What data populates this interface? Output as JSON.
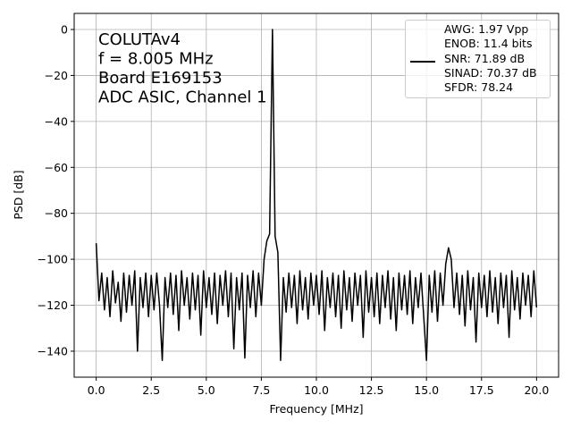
{
  "chart_data": {
    "type": "line",
    "xlabel": "Frequency [MHz]",
    "ylabel": "PSD [dB]",
    "annotations": [
      "COLUTAv4",
      "f = 8.005 MHz",
      "Board E169153",
      "ADC ASIC, Channel 1"
    ],
    "xlim": [
      -1.0,
      21.0
    ],
    "ylim": [
      -151.3,
      7
    ],
    "xticks": [
      {
        "value": 0,
        "label": "0.0"
      },
      {
        "value": 2.5,
        "label": "2.5"
      },
      {
        "value": 5,
        "label": "5.0"
      },
      {
        "value": 7.5,
        "label": "7.5"
      },
      {
        "value": 10,
        "label": "10.0"
      },
      {
        "value": 12.5,
        "label": "12.5"
      },
      {
        "value": 15,
        "label": "15.0"
      },
      {
        "value": 17.5,
        "label": "17.5"
      },
      {
        "value": 20,
        "label": "20.0"
      }
    ],
    "yticks": [
      0,
      {
        "value": -20,
        "label": "−20"
      },
      {
        "value": -40,
        "label": "−40"
      },
      {
        "value": -60,
        "label": "−60"
      },
      {
        "value": -80,
        "label": "−80"
      },
      {
        "value": -100,
        "label": "−100"
      },
      {
        "value": -120,
        "label": "−120"
      },
      {
        "value": -140,
        "label": "−140"
      }
    ],
    "grid": true,
    "legend": "upper right",
    "x": [
      0,
      0.125,
      0.25,
      0.375,
      0.5,
      0.625,
      0.75,
      0.875,
      1,
      1.125,
      1.25,
      1.375,
      1.5,
      1.625,
      1.75,
      1.875,
      2,
      2.125,
      2.25,
      2.375,
      2.5,
      2.625,
      2.75,
      2.875,
      3,
      3.125,
      3.25,
      3.375,
      3.5,
      3.625,
      3.75,
      3.875,
      4,
      4.125,
      4.25,
      4.375,
      4.5,
      4.625,
      4.75,
      4.875,
      5,
      5.125,
      5.25,
      5.375,
      5.5,
      5.625,
      5.75,
      5.875,
      6,
      6.125,
      6.25,
      6.375,
      6.5,
      6.625,
      6.75,
      6.875,
      7,
      7.125,
      7.25,
      7.375,
      7.5,
      7.625,
      7.75,
      7.875,
      8.005,
      8.125,
      8.25,
      8.375,
      8.5,
      8.625,
      8.75,
      8.875,
      9,
      9.125,
      9.25,
      9.375,
      9.5,
      9.625,
      9.75,
      9.875,
      10,
      10.125,
      10.25,
      10.375,
      10.5,
      10.625,
      10.75,
      10.875,
      11,
      11.125,
      11.25,
      11.375,
      11.5,
      11.625,
      11.75,
      11.875,
      12,
      12.125,
      12.25,
      12.375,
      12.5,
      12.625,
      12.75,
      12.875,
      13,
      13.125,
      13.25,
      13.375,
      13.5,
      13.625,
      13.75,
      13.875,
      14,
      14.125,
      14.25,
      14.375,
      14.5,
      14.625,
      14.75,
      14.875,
      15,
      15.125,
      15.25,
      15.375,
      15.5,
      15.625,
      15.75,
      15.875,
      16,
      16.125,
      16.25,
      16.375,
      16.5,
      16.625,
      16.75,
      16.875,
      17,
      17.125,
      17.25,
      17.375,
      17.5,
      17.625,
      17.75,
      17.875,
      18,
      18.125,
      18.25,
      18.375,
      18.5,
      18.625,
      18.75,
      18.875,
      19,
      19.125,
      19.25,
      19.375,
      19.5,
      19.625,
      19.75,
      19.875,
      20
    ],
    "series": [
      {
        "name": "AWG: 1.97 Vpp\nENOB: 11.4 bits\nSNR: 71.89 dB\nSINAD: 70.37 dB\nSFDR: 78.24",
        "color": "#000000",
        "values": [
          -93,
          -118,
          -106,
          -122,
          -108,
          -125,
          -105,
          -119,
          -110,
          -127,
          -106,
          -123,
          -107,
          -120,
          -105,
          -140,
          -108,
          -121,
          -106,
          -125,
          -107,
          -122,
          -106,
          -120,
          -144,
          -108,
          -121,
          -106,
          -124,
          -107,
          -131,
          -105,
          -120,
          -108,
          -126,
          -106,
          -122,
          -107,
          -133,
          -105,
          -121,
          -108,
          -124,
          -106,
          -128,
          -107,
          -120,
          -105,
          -125,
          -106,
          -139,
          -108,
          -122,
          -106,
          -143,
          -107,
          -121,
          -105,
          -125,
          -106,
          -120,
          -100,
          -92,
          -89,
          0,
          -90,
          -97,
          -144,
          -108,
          -123,
          -106,
          -121,
          -107,
          -128,
          -105,
          -122,
          -108,
          -126,
          -106,
          -120,
          -107,
          -124,
          -105,
          -131,
          -108,
          -121,
          -106,
          -125,
          -107,
          -130,
          -105,
          -122,
          -108,
          -127,
          -106,
          -120,
          -107,
          -134,
          -105,
          -123,
          -108,
          -125,
          -106,
          -128,
          -107,
          -121,
          -105,
          -126,
          -108,
          -131,
          -106,
          -122,
          -107,
          -124,
          -105,
          -128,
          -108,
          -121,
          -106,
          -125,
          -144,
          -107,
          -123,
          -105,
          -127,
          -106,
          -120,
          -102,
          -95,
          -100,
          -121,
          -106,
          -124,
          -107,
          -129,
          -105,
          -122,
          -108,
          -136,
          -106,
          -121,
          -107,
          -125,
          -105,
          -123,
          -108,
          -128,
          -106,
          -121,
          -107,
          -134,
          -105,
          -122,
          -108,
          -126,
          -106,
          -120,
          -107,
          -125,
          -105,
          -121
        ]
      }
    ]
  }
}
